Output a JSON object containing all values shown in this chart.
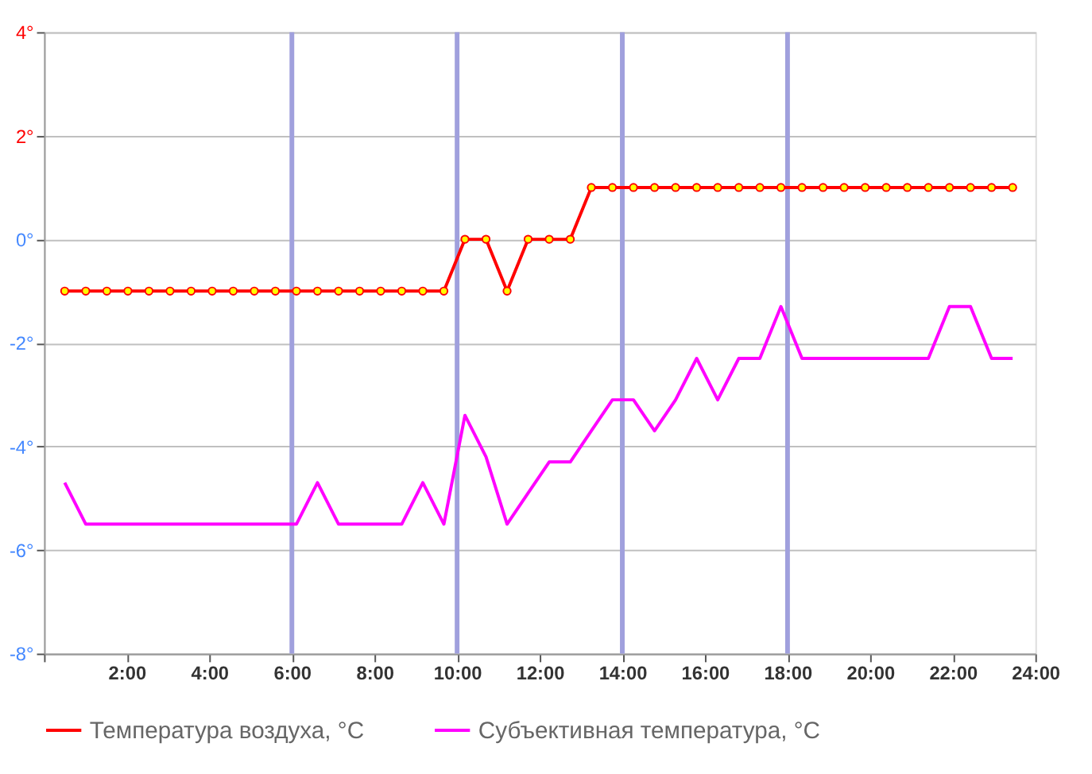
{
  "chart_data": {
    "type": "line",
    "x": [
      0.5,
      1.01,
      1.52,
      2.03,
      2.54,
      3.05,
      3.56,
      4.07,
      4.58,
      5.09,
      5.6,
      6.11,
      6.62,
      7.13,
      7.64,
      8.15,
      8.66,
      9.17,
      9.68,
      10.19,
      10.7,
      11.21,
      11.72,
      12.23,
      12.74,
      13.25,
      13.76,
      14.27,
      14.78,
      15.29,
      15.8,
      16.31,
      16.82,
      17.33,
      17.84,
      18.35,
      18.86,
      19.37,
      19.88,
      20.39,
      20.9,
      21.41,
      21.92,
      22.43,
      22.94,
      23.45
    ],
    "series": [
      {
        "name": "Температура воздуха, °C",
        "color": "#ff0000",
        "marker": "circle",
        "values": [
          -1,
          -1,
          -1,
          -1,
          -1,
          -1,
          -1,
          -1,
          -1,
          -1,
          -1,
          -1,
          -1,
          -1,
          -1,
          -1,
          -1,
          -1,
          -1,
          0,
          0,
          -1,
          0,
          0,
          0,
          1,
          1,
          1,
          1,
          1,
          1,
          1,
          1,
          1,
          1,
          1,
          1,
          1,
          1,
          1,
          1,
          1,
          1,
          1,
          1,
          1
        ]
      },
      {
        "name": "Субъективная температура, °C",
        "color": "#ff00ff",
        "marker": "none",
        "values": [
          -4.7,
          -5.5,
          -5.5,
          -5.5,
          -5.5,
          -5.5,
          -5.5,
          -5.5,
          -5.5,
          -5.5,
          -5.5,
          -5.5,
          -4.7,
          -5.5,
          -5.5,
          -5.5,
          -5.5,
          -4.7,
          -5.5,
          -3.4,
          -4.2,
          -5.5,
          -4.9,
          -4.3,
          -4.3,
          -3.7,
          -3.1,
          -3.1,
          -3.7,
          -3.1,
          -2.3,
          -3.1,
          -2.3,
          -2.3,
          -1.3,
          -2.3,
          -2.3,
          -2.3,
          -2.3,
          -2.3,
          -2.3,
          -2.3,
          -1.3,
          -1.3,
          -2.3,
          -2.3
        ]
      }
    ],
    "xlim": [
      0,
      24
    ],
    "xticks": [
      {
        "value": 0,
        "label": null
      },
      {
        "value": 2,
        "label": "2:00"
      },
      {
        "value": 4,
        "label": "4:00"
      },
      {
        "value": 6,
        "label": "6:00"
      },
      {
        "value": 8,
        "label": "8:00"
      },
      {
        "value": 10,
        "label": "10:00"
      },
      {
        "value": 12,
        "label": "12:00"
      },
      {
        "value": 14,
        "label": "14:00"
      },
      {
        "value": 16,
        "label": "16:00"
      },
      {
        "value": 18,
        "label": "18:00"
      },
      {
        "value": 20,
        "label": "20:00"
      },
      {
        "value": 22,
        "label": "22:00"
      },
      {
        "value": 24,
        "label": "24:00"
      }
    ],
    "ylim": [
      -8,
      4
    ],
    "yticks": [
      {
        "value": -8,
        "label": "-8°"
      },
      {
        "value": -6,
        "label": "-6°"
      },
      {
        "value": -4,
        "label": "-4°"
      },
      {
        "value": -2,
        "label": "-2°"
      },
      {
        "value": 0,
        "label": "0°"
      },
      {
        "value": 2,
        "label": "2°"
      },
      {
        "value": 4,
        "label": "4°"
      }
    ],
    "ref_lines": [
      {
        "axis": "x",
        "value": 6,
        "color": "#a0a0dd"
      },
      {
        "axis": "x",
        "value": 10,
        "color": "#a0a0dd"
      },
      {
        "axis": "x",
        "value": 14,
        "color": "#a0a0dd"
      },
      {
        "axis": "x",
        "value": 18,
        "color": "#a0a0dd"
      }
    ],
    "grid": "y",
    "legend": "bottom",
    "line_style": "solid"
  }
}
